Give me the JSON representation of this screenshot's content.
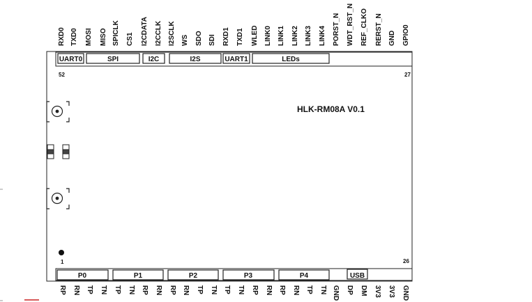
{
  "top_pins": [
    "RXD0",
    "TXD0",
    "MOSI",
    "MISO",
    "SPICLK",
    "CS1",
    "I2CDATA",
    "I2CCLK",
    "I2SCLK",
    "WS",
    "SDO",
    "SDI",
    "RXD1",
    "TXD1",
    "WLED",
    "LINK0",
    "LINK1",
    "LINK2",
    "LINK3",
    "LINK4",
    "PORST_N",
    "WDT_RST_N",
    "REF_CLKO",
    "RERST_N",
    "GND",
    "GPIO0"
  ],
  "top_groups": [
    "UART0",
    "SPI",
    "I2C",
    "I2S",
    "UART1",
    "LEDs"
  ],
  "bottom_pins": [
    "RP",
    "RN",
    "TP",
    "TN",
    "TP",
    "TN",
    "RP",
    "RN",
    "RP",
    "RN",
    "TP",
    "TN",
    "TP",
    "TN",
    "RP",
    "RN",
    "RP",
    "RN",
    "TP",
    "TN",
    "GND",
    "DP",
    "DM",
    "3V3",
    "3V3",
    "GND"
  ],
  "bottom_groups": [
    "P0",
    "P1",
    "P2",
    "P3",
    "P4",
    "USB"
  ],
  "pin_numbers": {
    "top_left": "52",
    "top_right": "27",
    "bottom_left": "1",
    "bottom_right": "26"
  },
  "model": "HLK-RM08A  V0.1"
}
